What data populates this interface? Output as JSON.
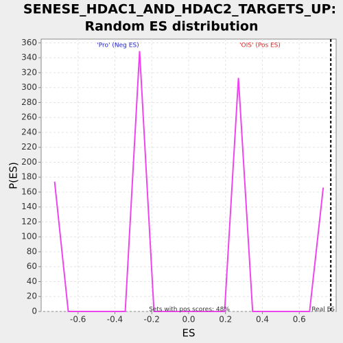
{
  "chart_data": {
    "type": "line",
    "title": [
      "SENESE_HDAC1_AND_HDAC2_TARGETS_UP:",
      "Random ES distribution"
    ],
    "xlabel": "ES",
    "ylabel": "P(ES)",
    "x": [
      -0.727,
      -0.653,
      -0.344,
      -0.266,
      -0.188,
      0.195,
      0.27,
      0.347,
      0.656,
      0.73
    ],
    "series": [
      {
        "color": "#ee44ee",
        "values": [
          174,
          0,
          0,
          349,
          0,
          0,
          313,
          0,
          0,
          166
        ]
      }
    ],
    "xlim": [
      -0.8,
      0.8
    ],
    "xticks": [
      -0.6,
      -0.4,
      -0.2,
      {
        "value": 0,
        "label": "0.0"
      },
      0.2,
      0.4,
      0.6
    ],
    "ylim": [
      0,
      365
    ],
    "yticks": [
      0,
      20,
      40,
      60,
      80,
      100,
      120,
      140,
      160,
      180,
      200,
      220,
      240,
      260,
      280,
      300,
      320,
      340,
      360
    ],
    "grid": true,
    "real_es": 0.771,
    "annotations": {
      "neg": "'Pro' (Neg ES)",
      "pos": "'OIS' (Pos ES)",
      "pos_share": "Sets with pos scores: 48%",
      "real_es": "Real ES"
    },
    "annotation_colors": {
      "neg": "#2222cc",
      "pos": "#dd2222"
    }
  }
}
